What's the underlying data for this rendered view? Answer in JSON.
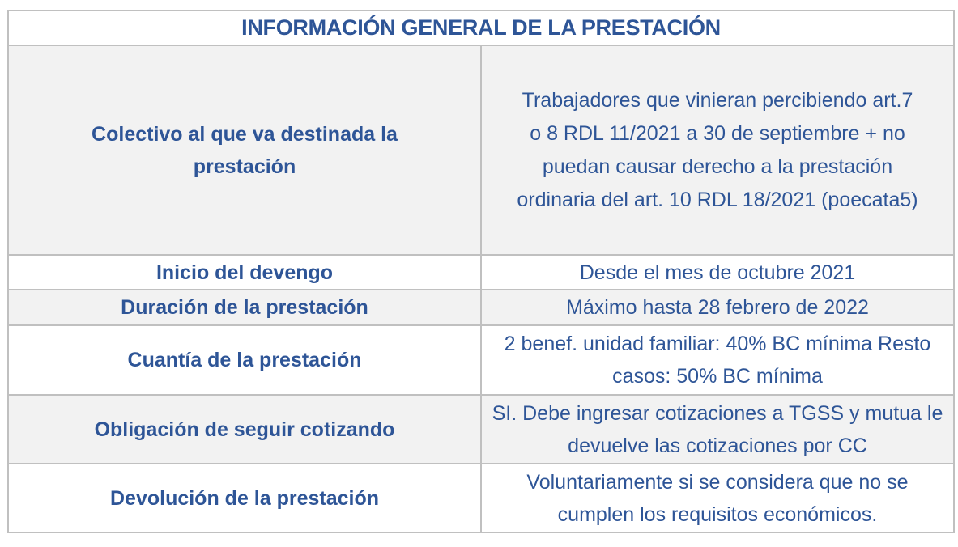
{
  "table": {
    "title": "INFORMACIÓN GENERAL DE LA PRESTACIÓN",
    "rows": [
      {
        "label": "Colectivo al que va destinada la prestación",
        "value": "Trabajadores que vinieran percibiendo art.7 o 8 RDL 11/2021 a 30 de septiembre + no puedan causar derecho a la prestación ordinaria del art. 10 RDL 18/2021 (poecata5)"
      },
      {
        "label": "Inicio del devengo",
        "value": "Desde el mes de octubre 2021"
      },
      {
        "label": "Duración de la prestación",
        "value": "Máximo hasta 28 febrero de 2022"
      },
      {
        "label": "Cuantía de la prestación",
        "value": "2 benef. unidad familiar: 40% BC mínima Resto casos: 50% BC mínima"
      },
      {
        "label": "Obligación de seguir cotizando",
        "value": "SI. Debe ingresar cotizaciones a TGSS y mutua le devuelve las cotizaciones por CC"
      },
      {
        "label": "Devolución de la prestación",
        "value": "Voluntariamente si se considera que no se cumplen los requisitos económicos."
      }
    ]
  },
  "colors": {
    "text": "#2e5597",
    "border": "#c0c0c0",
    "shaded_row": "#f2f2f2"
  }
}
